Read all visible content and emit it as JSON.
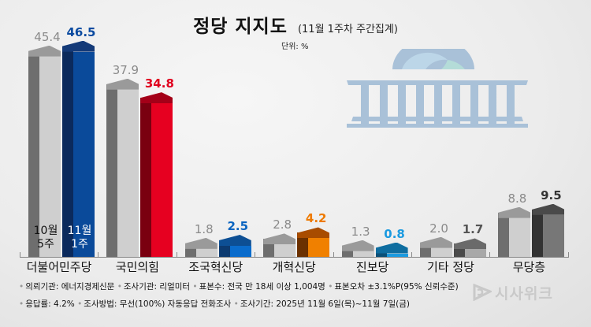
{
  "title": {
    "main": "정당 지지도",
    "sub": "(11월 1주차 주간집계)"
  },
  "unit": "단위: %",
  "legend_in_bars": {
    "prev": "10월\n5주",
    "prev_line1": "10월",
    "prev_line2": "5주",
    "cur_line1": "11월",
    "cur_line2": "1주"
  },
  "chart_data": {
    "type": "bar",
    "title": "정당 지지도 (11월 1주차 주간집계)",
    "subtitle": "단위: %",
    "xlabel": "",
    "ylabel": "%",
    "categories": [
      "더불어민주당",
      "국민의힘",
      "조국혁신당",
      "개혁신당",
      "진보당",
      "기타 정당",
      "무당층"
    ],
    "series": [
      {
        "name": "10월 5주",
        "values": [
          45.4,
          37.9,
          1.8,
          2.8,
          1.3,
          2.0,
          8.8
        ]
      },
      {
        "name": "11월 1주",
        "values": [
          46.5,
          34.8,
          2.5,
          4.2,
          0.8,
          1.7,
          9.5
        ]
      }
    ],
    "value_labels_prev": [
      "45.4",
      "37.9",
      "1.8",
      "2.8",
      "1.3",
      "2.0",
      "8.8"
    ],
    "value_labels_cur": [
      "46.5",
      "34.8",
      "2.5",
      "4.2",
      "0.8",
      "1.7",
      "9.5"
    ],
    "grid": false,
    "legend_position": "inside first group bars"
  },
  "colors": {
    "prev": {
      "side": "#6e6e6e",
      "front": "#cfcfcf",
      "top": "#9a9a9a",
      "label": "#8a8a8a"
    },
    "cur": [
      {
        "side": "#0b2a5c",
        "front": "#0a4a9a",
        "top": "#143a78",
        "label": "#0a4aa0"
      },
      {
        "side": "#7a0010",
        "front": "#e60020",
        "top": "#a40018",
        "label": "#e0001e"
      },
      {
        "side": "#0c3a70",
        "front": "#0a6ccc",
        "top": "#0d4f94",
        "label": "#0a64c0"
      },
      {
        "side": "#6b3000",
        "front": "#f08000",
        "top": "#a84c00",
        "label": "#ee7a00"
      },
      {
        "side": "#0a5078",
        "front": "#1a9ae0",
        "top": "#0e6da0",
        "label": "#1a9ae0"
      },
      {
        "side": "#4a4a4a",
        "front": "#a8a8a8",
        "top": "#6a6a6a",
        "label": "#555555"
      },
      {
        "side": "#333333",
        "front": "#777777",
        "top": "#4a4a4a",
        "label": "#333333"
      }
    ]
  },
  "notes": {
    "line1": [
      "의뢰기관: 에너지경제신문",
      "조사기관: 리얼미터",
      "표본수: 전국 만 18세 이상 1,004명",
      "표본오차 ±3.1%P(95% 신뢰수준)"
    ],
    "line2": [
      "응답률: 4.2%",
      "조사방법: 무선(100%) 자동응답 전화조사",
      "조사기간: 2025년 11월 6일(목)~11월 7일(금)"
    ]
  },
  "logo": {
    "text": "시사위크",
    "icon": "sisaweek-logo-icon"
  },
  "illustration": {
    "icon": "national-assembly-building-icon"
  }
}
